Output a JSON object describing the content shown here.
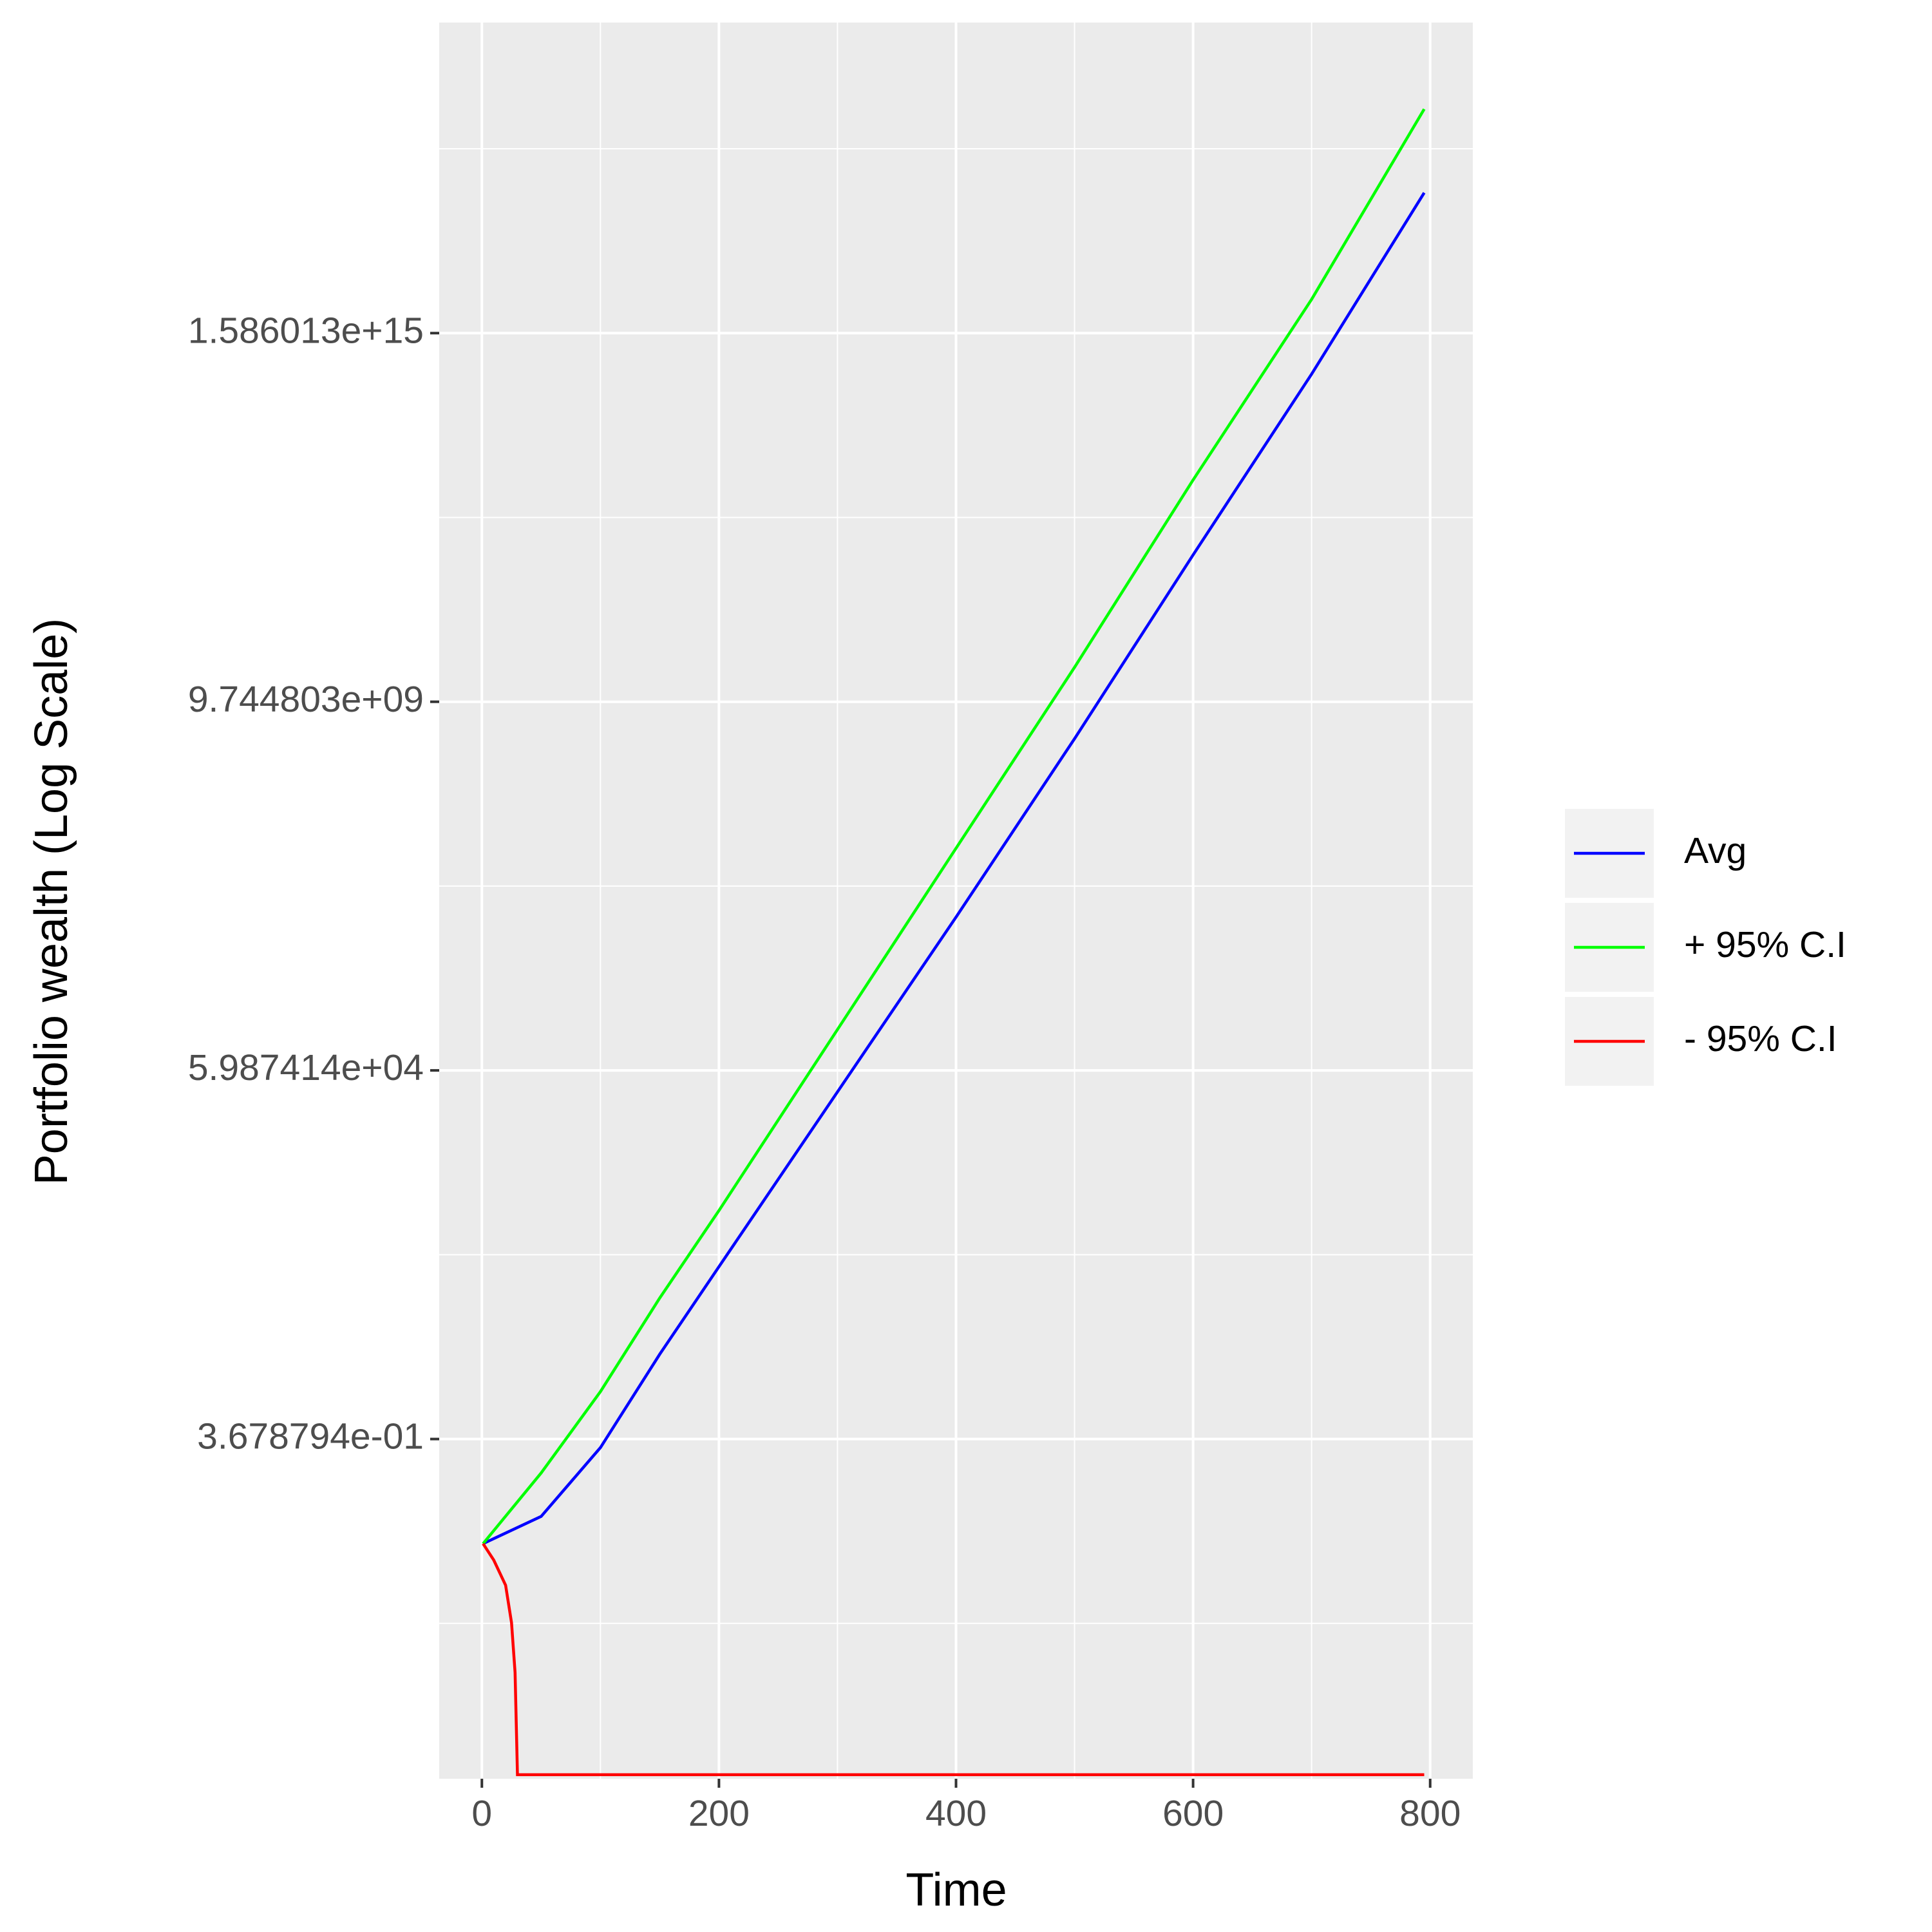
{
  "chart_data": {
    "type": "line",
    "xlabel": "Time",
    "ylabel": "Portfolio wealth (Log Scale)",
    "ylog": true,
    "grid": true,
    "legend": "right",
    "xlim": [
      -36,
      836
    ],
    "xticks": [
      0,
      200,
      400,
      600,
      800
    ],
    "xminor": [
      100,
      300,
      500,
      700
    ],
    "ylim": [
      5.8e-06,
      39000000000000000000
    ],
    "yticks": [
      {
        "value": 0.3678794,
        "label": "3.678794e-01"
      },
      {
        "value": 59874.14,
        "label": "5.987414e+04"
      },
      {
        "value": 9744803000,
        "label": "9.744803e+09"
      },
      {
        "value": 1586013000000000,
        "label": "1.586013e+15"
      }
    ],
    "yminor": [
      0.000912,
      148.4,
      24154953,
      3931334297144,
      639843493530054900
    ],
    "series": [
      {
        "name": "Avg",
        "color": "#0000ff",
        "x": [
          1,
          50,
          100,
          150,
          200,
          300,
          400,
          500,
          600,
          700,
          795
        ],
        "values": [
          0.0122,
          0.0296,
          0.278,
          5.81,
          100.5,
          29733,
          8800000,
          2930000000,
          1160000000000,
          419000000000000,
          153000000000000000
        ]
      },
      {
        "name": "+ 95% C.I",
        "color": "#00ff00",
        "x": [
          1,
          50,
          100,
          150,
          200,
          300,
          400,
          500,
          600,
          700,
          795
        ],
        "values": [
          0.0122,
          0.122,
          1.72,
          36.2,
          626,
          226000,
          82600000,
          30000000000,
          13300000000000,
          4760000000000000,
          2330000000000000000
        ]
      },
      {
        "name": "- 95% C.I",
        "color": "#ff0000",
        "x": [
          1,
          10,
          20,
          25,
          28,
          30,
          795
        ],
        "values": [
          0.0122,
          0.00715,
          0.00316,
          0.00093,
          0.000184,
          6.6e-06,
          6.6e-06
        ]
      }
    ]
  }
}
